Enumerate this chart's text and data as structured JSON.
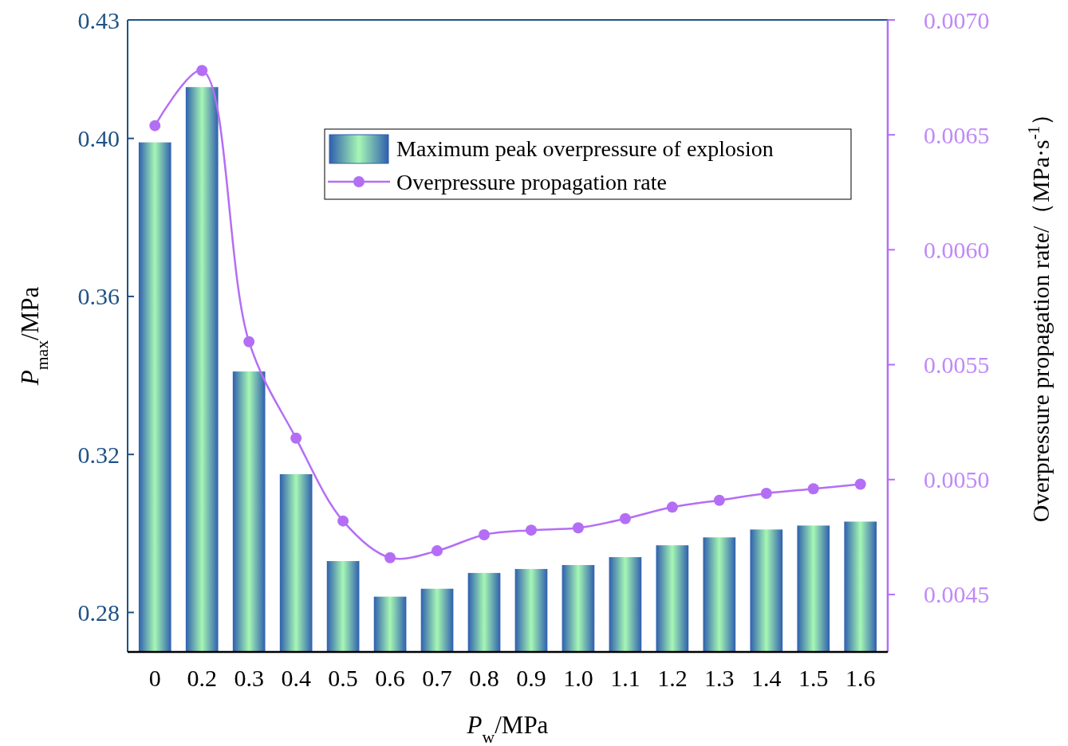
{
  "chart_data": {
    "type": "bar",
    "xlabel": "P$_{w}$/MPa",
    "ylabel": "P$_{max}$/MPa",
    "y2label": "Overpressure propagation rate/（MPa·s$^{-1}$）",
    "categories": [
      "0",
      "0.2",
      "0.3",
      "0.4",
      "0.5",
      "0.6",
      "0.7",
      "0.8",
      "0.9",
      "1.0",
      "1.1",
      "1.2",
      "1.3",
      "1.4",
      "1.5",
      "1.6"
    ],
    "series": [
      {
        "name": "Maximum peak overpressure of explosion",
        "color": "#a6f7b4",
        "values": [
          0.399,
          0.413,
          0.341,
          0.315,
          0.293,
          0.284,
          0.286,
          0.29,
          0.291,
          0.292,
          0.294,
          0.297,
          0.299,
          0.301,
          0.302,
          0.303
        ]
      },
      {
        "name": "Overpressure propagation rate",
        "type": "line",
        "axis": "y2",
        "color": "#b46ef5",
        "values": [
          0.00654,
          0.00678,
          0.0056,
          0.00518,
          0.00482,
          0.00466,
          0.00469,
          0.00476,
          0.00478,
          0.00479,
          0.00483,
          0.00488,
          0.00491,
          0.00494,
          0.00496,
          0.00498
        ]
      }
    ],
    "ylim": [
      0.27,
      0.43
    ],
    "yticks": [
      0.28,
      0.32,
      0.36,
      {
        "value": 0.4,
        "label": "0.40"
      },
      0.43
    ],
    "y2lim": [
      0.00425,
      0.007
    ],
    "y2ticks": [
      0.0045,
      {
        "value": 0.005,
        "label": "0.0050"
      },
      0.0055,
      {
        "value": 0.006,
        "label": "0.0060"
      },
      0.0065,
      {
        "value": 0.007,
        "label": "0.0070"
      }
    ],
    "legend": "top right",
    "marker": "circle",
    "grid": false
  }
}
